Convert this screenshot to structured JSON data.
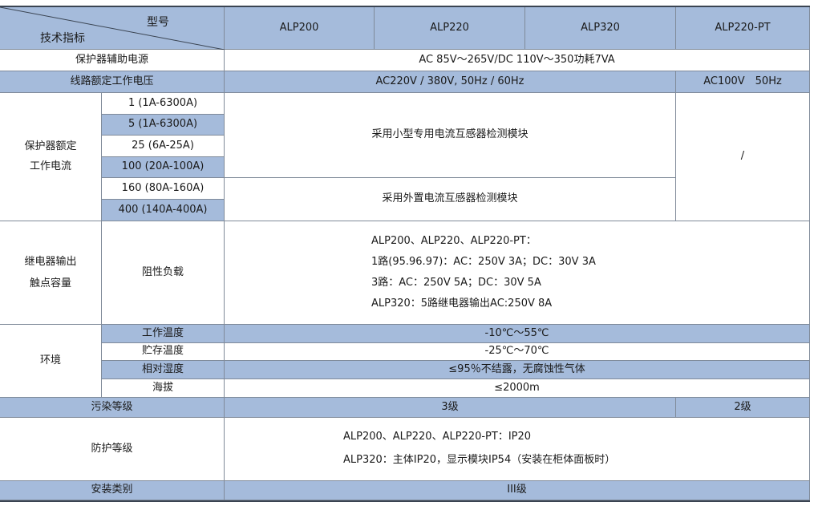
{
  "header": {
    "corner_top": "型号",
    "corner_bottom": "技术指标",
    "models": [
      "ALP200",
      "ALP220",
      "ALP320",
      "ALP220-PT"
    ]
  },
  "aux_power": {
    "label": "保护器辅助电源",
    "value": "AC 85V～265V/DC 110V～350功耗7VA"
  },
  "line_voltage": {
    "label": "线路额定工作电压",
    "value": "AC220V / 380V, 50Hz / 60Hz",
    "value_pt": "AC100V　50Hz"
  },
  "rated_current": {
    "label_line1": "保护器额定",
    "label_line2": "工作电流",
    "ranges": [
      "1 (1A-6300A)",
      "5 (1A-6300A)",
      "25 (6A-25A)",
      "100 (20A-100A)",
      "160 (80A-160A)",
      "400 (140A-400A)"
    ],
    "small_ct": "采用小型专用电流互感器检测模块",
    "external_ct": "采用外置电流互感器检测模块",
    "pt_value": "/"
  },
  "relay": {
    "label_line1": "继电器输出",
    "label_line2": "触点容量",
    "sub": "阻性负载",
    "lines": [
      "ALP200、ALP220、ALP220-PT：",
      "1路(95.96.97)：AC：250V 3A；DC：30V 3A",
      "3路：AC：250V 5A；DC：30V 5A",
      "ALP320：5路继电器输出AC:250V 8A"
    ]
  },
  "environment": {
    "label": "环境",
    "rows": [
      {
        "name": "工作温度",
        "value": "-10℃～55℃"
      },
      {
        "name": "贮存温度",
        "value": "-25℃～70℃"
      },
      {
        "name": "相对湿度",
        "value": "≤95％不结露，无腐蚀性气体"
      },
      {
        "name": "海拔",
        "value": "≤2000m"
      }
    ]
  },
  "pollution": {
    "label": "污染等级",
    "value": "3级",
    "value_pt": "2级"
  },
  "protection": {
    "label": "防护等级",
    "lines": [
      "ALP200、ALP220、ALP220-PT：IP20",
      "ALP320：主体IP20，显示模块IP54（安装在柜体面板时）"
    ]
  },
  "install": {
    "label": "安装类别",
    "value": "III级"
  },
  "colors": {
    "header_fill": "#a5bbdb",
    "border": "#7f8a99"
  }
}
